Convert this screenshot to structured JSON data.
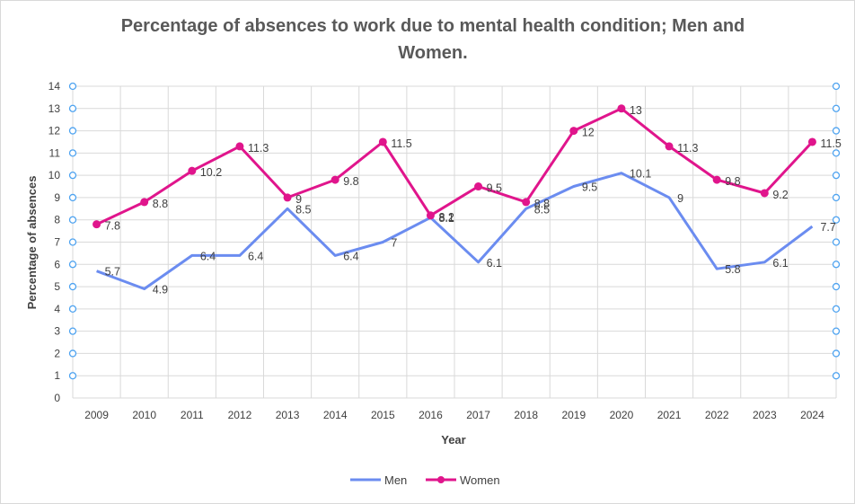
{
  "chart_data": {
    "type": "line",
    "title": "Percentage of absences to work due to mental health condition; Men and Women.",
    "xlabel": "Year",
    "ylabel": "Percentage of absences",
    "categories": [
      "2009",
      "2010",
      "2011",
      "2012",
      "2013",
      "2014",
      "2015",
      "2016",
      "2017",
      "2018",
      "2019",
      "2020",
      "2021",
      "2022",
      "2023",
      "2024"
    ],
    "ylim": [
      0,
      14
    ],
    "yticks": [
      0,
      1,
      2,
      3,
      4,
      5,
      6,
      7,
      8,
      9,
      10,
      11,
      12,
      13,
      14
    ],
    "grid": true,
    "legend": "bottom",
    "series": [
      {
        "name": "Men",
        "color": "#6b8cf0",
        "marker": "none",
        "values": [
          5.7,
          4.9,
          6.4,
          6.4,
          8.5,
          6.4,
          7,
          8.1,
          6.1,
          8.5,
          9.5,
          10.1,
          9,
          5.8,
          6.1,
          7.7
        ]
      },
      {
        "name": "Women",
        "color": "#e0158c",
        "marker": "circle",
        "values": [
          7.8,
          8.8,
          10.2,
          11.3,
          9,
          9.8,
          11.5,
          8.2,
          9.5,
          8.8,
          12,
          13,
          11.3,
          9.8,
          9.2,
          11.5
        ]
      }
    ]
  }
}
